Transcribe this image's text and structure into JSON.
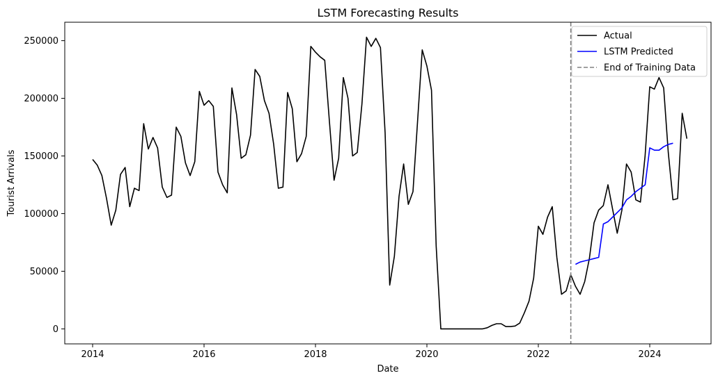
{
  "chart_data": {
    "type": "line",
    "title": "LSTM Forecasting Results",
    "xlabel": "Date",
    "ylabel": "Tourist Arrivals",
    "xlim": [
      2013.5,
      2025.1
    ],
    "ylim": [
      -13000,
      266000
    ],
    "x_ticks": [
      2014,
      2016,
      2018,
      2020,
      2022,
      2024
    ],
    "x_tick_labels": [
      "2014",
      "2016",
      "2018",
      "2020",
      "2022",
      "2024"
    ],
    "y_ticks": [
      0,
      50000,
      100000,
      150000,
      200000,
      250000
    ],
    "y_tick_labels": [
      "0",
      "50000",
      "100000",
      "150000",
      "200000",
      "250000"
    ],
    "grid": false,
    "legend_position": "top-right",
    "vline": {
      "x": 2022.583,
      "label": "End of Training Data",
      "color": "#808080",
      "style": "dashed"
    },
    "series": [
      {
        "name": "Actual",
        "color": "#000000",
        "x_start": 2014.0,
        "x_step": 0.08333,
        "values": [
          147000,
          142000,
          133000,
          113000,
          90000,
          103000,
          134000,
          140000,
          106000,
          122000,
          120000,
          178000,
          156000,
          166000,
          157000,
          123000,
          114000,
          116000,
          175000,
          167000,
          144000,
          133000,
          145000,
          206000,
          194000,
          198000,
          193000,
          136000,
          125000,
          118000,
          209000,
          186000,
          148000,
          151000,
          168000,
          225000,
          219000,
          198000,
          187000,
          160000,
          122000,
          123000,
          205000,
          191000,
          145000,
          152000,
          167000,
          245000,
          240000,
          236000,
          233000,
          180000,
          129000,
          148000,
          218000,
          200000,
          150000,
          153000,
          195000,
          253000,
          245000,
          252000,
          244000,
          170000,
          38000,
          63000,
          115000,
          143000,
          108000,
          119000,
          180000,
          242000,
          228000,
          207000,
          72000,
          0,
          0,
          0,
          0,
          0,
          0,
          0,
          0,
          0,
          0,
          1000,
          3000,
          4500,
          4500,
          2000,
          2000,
          2500,
          5000,
          14000,
          24000,
          44000,
          89000,
          82000,
          97000,
          106000,
          62000,
          30000,
          33000,
          47000,
          37000,
          30000,
          41000,
          61000,
          92000,
          103000,
          107000,
          125000,
          104000,
          83000,
          103000,
          143000,
          136000,
          112000,
          110000,
          150000,
          210000,
          208000,
          218000,
          209000,
          153000,
          112000,
          113000,
          187000,
          165000
        ]
      },
      {
        "name": "LSTM Predicted",
        "color": "#0000ff",
        "x_start": 2022.667,
        "x_step": 0.08333,
        "values": [
          56000,
          58000,
          59000,
          60000,
          61000,
          62000,
          91000,
          93000,
          97000,
          101000,
          105000,
          112000,
          115000,
          119000,
          122000,
          125000,
          157000,
          155000,
          155000,
          158000,
          160000,
          161000
        ]
      }
    ]
  }
}
